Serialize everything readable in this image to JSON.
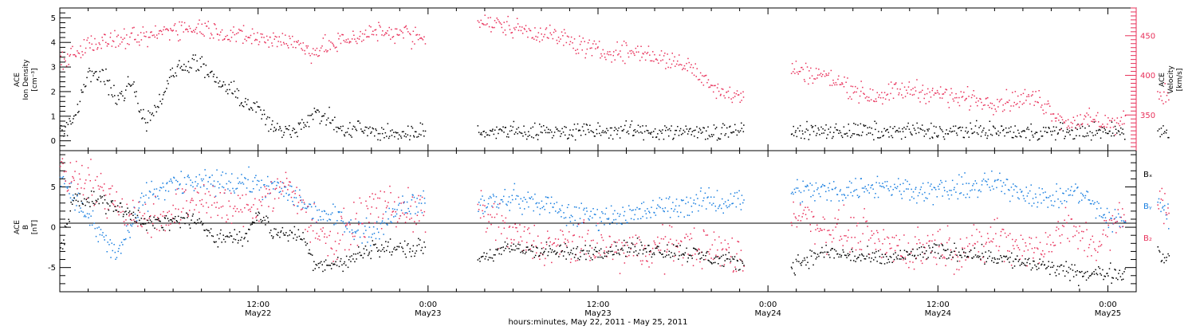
{
  "colors": {
    "black": "#000000",
    "pink": "#e8305a",
    "blue": "#1a7fe0"
  },
  "x_axis": {
    "title": "hours:minutes, May 22, 2011 - May 25, 2011",
    "xlim_hours": [
      -14,
      62
    ],
    "ticks": [
      {
        "hour": 0,
        "time": "12:00",
        "date": "May22"
      },
      {
        "hour": 12,
        "time": "0:00",
        "date": "May23"
      },
      {
        "hour": 24,
        "time": "12:00",
        "date": "May23"
      },
      {
        "hour": 36,
        "time": "0:00",
        "date": "May24"
      },
      {
        "hour": 48,
        "time": "12:00",
        "date": "May24"
      },
      {
        "hour": 60,
        "time": "0:00",
        "date": "May25"
      }
    ]
  },
  "chart_data": [
    {
      "type": "scatter",
      "panel": "top",
      "left_axis": {
        "label_lines": [
          "ACE",
          "Ion Density",
          "[cm⁻³]"
        ],
        "ylim": [
          -0.4,
          5.4
        ],
        "ticks": [
          "0",
          "1",
          "2",
          "3",
          "4",
          "5"
        ]
      },
      "right_axis": {
        "label_lines": [
          "ACE",
          "Velocity",
          "[km/s]"
        ],
        "ylim": [
          305,
          485
        ],
        "ticks": [
          "350",
          "400",
          "450"
        ]
      },
      "series": [
        {
          "color_key": "black",
          "axis": "left",
          "keyframes": [
            [
              -14,
              0.4
            ],
            [
              -13,
              1.0
            ],
            [
              -12,
              2.6
            ],
            [
              -11,
              2.8
            ],
            [
              -10,
              1.6
            ],
            [
              -9,
              2.5
            ],
            [
              -8,
              0.8
            ],
            [
              -7,
              1.6
            ],
            [
              -6,
              2.8
            ],
            [
              -4.5,
              3.3
            ],
            [
              -3,
              2.4
            ],
            [
              -2,
              2.1
            ],
            [
              -1,
              1.6
            ],
            [
              0,
              1.3
            ],
            [
              1,
              0.5
            ],
            [
              1.5,
              0.4
            ],
            [
              2.5,
              0.5
            ],
            [
              4,
              1.1
            ],
            [
              5,
              0.9
            ],
            [
              6,
              0.3
            ],
            [
              7,
              0.6
            ],
            [
              8,
              0.3
            ],
            [
              10,
              0.3
            ],
            [
              11.5,
              0.4
            ]
          ],
          "segments": [
            [
              -14,
              11.8
            ],
            [
              15.5,
              26.5
            ],
            [
              26.5,
              34.3
            ],
            [
              37.6,
              48
            ],
            [
              48,
              61.2
            ],
            [
              63.5,
              64.3
            ]
          ],
          "noise": 0.32
        },
        {
          "color_key": "pink",
          "axis": "right",
          "keyframes": [
            [
              -14,
              420
            ],
            [
              -12,
              440
            ],
            [
              -10,
              445
            ],
            [
              -8,
              448
            ],
            [
              -6,
              460
            ],
            [
              -4,
              462
            ],
            [
              -2,
              452
            ],
            [
              0,
              448
            ],
            [
              2,
              445
            ],
            [
              4,
              430
            ],
            [
              6,
              445
            ],
            [
              8,
              455
            ],
            [
              10,
              455
            ],
            [
              11.5,
              448
            ],
            [
              15.5,
              468
            ],
            [
              18,
              462
            ],
            [
              21,
              450
            ],
            [
              24,
              430
            ],
            [
              27,
              430
            ],
            [
              30,
              415
            ],
            [
              33,
              378
            ],
            [
              34.3,
              375
            ],
            [
              37.6,
              408
            ],
            [
              40,
              400
            ],
            [
              43,
              375
            ],
            [
              46,
              383
            ],
            [
              49,
              374
            ],
            [
              52,
              367
            ],
            [
              55,
              372
            ],
            [
              57,
              340
            ],
            [
              58,
              345
            ],
            [
              60,
              340
            ],
            [
              61.2,
              342
            ],
            [
              63.5,
              378
            ],
            [
              64.3,
              375
            ]
          ],
          "segments": [
            [
              -14,
              11.8
            ],
            [
              15.5,
              34.3
            ],
            [
              37.6,
              61.2
            ],
            [
              63.5,
              64.3
            ]
          ],
          "noise": 11
        }
      ]
    },
    {
      "type": "scatter",
      "panel": "bottom",
      "left_axis": {
        "label_lines": [
          "ACE",
          "B",
          "[nT]"
        ],
        "ylim": [
          -8.0,
          9.5
        ],
        "ticks": [
          "-5",
          "0",
          "5"
        ],
        "zero_line": true
      },
      "legend": [
        {
          "label": "Bₓ",
          "color_key": "black"
        },
        {
          "label": "Bᵧ",
          "color_key": "blue"
        },
        {
          "label": "B₂",
          "color_key": "pink"
        }
      ],
      "series": [
        {
          "name": "Bx",
          "color_key": "black",
          "keyframes": [
            [
              -14,
              -3
            ],
            [
              -13,
              4
            ],
            [
              -11,
              3.2
            ],
            [
              -9,
              1.5
            ],
            [
              -7,
              0.5
            ],
            [
              -5,
              1.2
            ],
            [
              -3,
              -1
            ],
            [
              -1,
              -1.5
            ],
            [
              0,
              2
            ],
            [
              1,
              -0.5
            ],
            [
              3,
              -1
            ],
            [
              4,
              -4.5
            ],
            [
              6,
              -4.5
            ],
            [
              8,
              -2.5
            ],
            [
              10,
              -2.5
            ],
            [
              11.5,
              -2.5
            ],
            [
              15.5,
              -3.8
            ],
            [
              18,
              -2.5
            ],
            [
              22,
              -3.2
            ],
            [
              26,
              -2.5
            ],
            [
              30,
              -3
            ],
            [
              34,
              -4.5
            ],
            [
              37.6,
              -4.6
            ],
            [
              40,
              -3
            ],
            [
              44,
              -4
            ],
            [
              47,
              -3
            ],
            [
              50,
              -3
            ],
            [
              53,
              -4
            ],
            [
              56,
              -5
            ],
            [
              58,
              -5.8
            ],
            [
              61,
              -5.5
            ],
            [
              63.5,
              -3
            ],
            [
              64.3,
              -4
            ]
          ],
          "segments": [
            [
              -14,
              11.8
            ],
            [
              15.5,
              34.3
            ],
            [
              37.6,
              61.2
            ],
            [
              63.5,
              64.3
            ]
          ],
          "noise": 0.9
        },
        {
          "name": "By",
          "color_key": "blue",
          "keyframes": [
            [
              -14,
              6.5
            ],
            [
              -12,
              1
            ],
            [
              -10,
              -3.5
            ],
            [
              -8,
              4
            ],
            [
              -6,
              5.5
            ],
            [
              -3,
              5.5
            ],
            [
              0,
              5.5
            ],
            [
              2,
              4.5
            ],
            [
              4,
              2
            ],
            [
              6,
              1
            ],
            [
              8,
              -1
            ],
            [
              10,
              3
            ],
            [
              11.5,
              3
            ],
            [
              15.5,
              3
            ],
            [
              18,
              3.5
            ],
            [
              20,
              3
            ],
            [
              22,
              1.5
            ],
            [
              26,
              1.5
            ],
            [
              30,
              3
            ],
            [
              34,
              3.5
            ],
            [
              37.6,
              4.8
            ],
            [
              40,
              4.5
            ],
            [
              44,
              5.2
            ],
            [
              48,
              4.5
            ],
            [
              52,
              5.5
            ],
            [
              56,
              3.5
            ],
            [
              58,
              4.5
            ],
            [
              60,
              1
            ],
            [
              61.2,
              0.5
            ],
            [
              63.5,
              4
            ],
            [
              64.3,
              1
            ]
          ],
          "segments": [
            [
              -14,
              11.8
            ],
            [
              15.5,
              34.3
            ],
            [
              37.6,
              61.2
            ],
            [
              63.5,
              64.3
            ]
          ],
          "noise": 1.3
        },
        {
          "name": "Bz",
          "color_key": "pink",
          "keyframes": [
            [
              -14,
              7
            ],
            [
              -12,
              6
            ],
            [
              -10,
              3
            ],
            [
              -8,
              1
            ],
            [
              -6,
              2
            ],
            [
              -4,
              4
            ],
            [
              -2,
              2
            ],
            [
              0,
              3
            ],
            [
              2,
              5.5
            ],
            [
              4,
              0
            ],
            [
              5,
              -2
            ],
            [
              6,
              -1
            ],
            [
              8,
              2.5
            ],
            [
              10,
              2.5
            ],
            [
              11.5,
              1.5
            ],
            [
              15.5,
              2
            ],
            [
              18,
              -1
            ],
            [
              20,
              -2.5
            ],
            [
              23,
              -2
            ],
            [
              26,
              -3
            ],
            [
              30,
              -2
            ],
            [
              33,
              -3
            ],
            [
              34.3,
              -4
            ],
            [
              37.6,
              2
            ],
            [
              40,
              0
            ],
            [
              43,
              -1
            ],
            [
              46,
              -3
            ],
            [
              48,
              -2
            ],
            [
              50,
              -3
            ],
            [
              52,
              -1
            ],
            [
              55,
              -3
            ],
            [
              57,
              0
            ],
            [
              59,
              -2
            ],
            [
              61,
              1
            ],
            [
              63.5,
              4
            ],
            [
              64.3,
              2
            ]
          ],
          "segments": [
            [
              -14,
              11.8
            ],
            [
              15.5,
              34.3
            ],
            [
              37.6,
              61.2
            ],
            [
              63.5,
              64.3
            ]
          ],
          "noise": 2.2
        }
      ]
    }
  ]
}
